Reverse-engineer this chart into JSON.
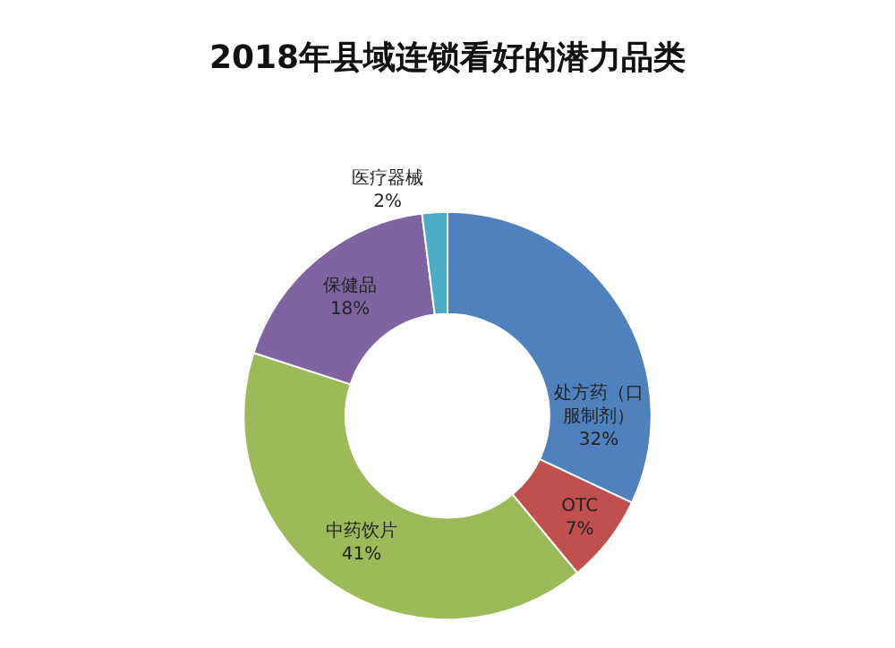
{
  "chart_data": {
    "type": "donut",
    "title": "2018年县域连锁看好的潜力品类",
    "categories": [
      "处方药（口服制剂）",
      "OTC",
      "中药饮片",
      "保健品",
      "医疗器械"
    ],
    "values": [
      32,
      7,
      41,
      18,
      2
    ],
    "value_labels": [
      "32%",
      "7%",
      "41%",
      "18%",
      "2%"
    ],
    "colors": [
      "#4f81bd",
      "#c0504d",
      "#9bbb59",
      "#8064a2",
      "#4bacc6"
    ],
    "legend": false
  }
}
